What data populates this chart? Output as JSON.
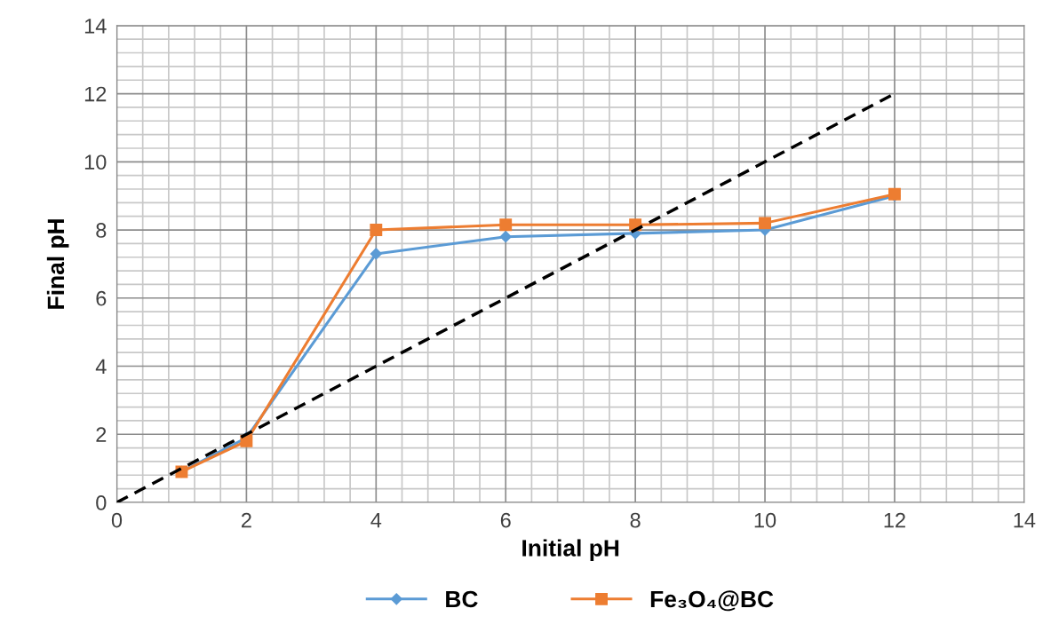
{
  "chart_data": {
    "type": "line",
    "xlabel": "Initial pH",
    "ylabel": "Final pH",
    "xlim": [
      0,
      14
    ],
    "xticks": [
      0,
      2,
      4,
      6,
      8,
      10,
      12,
      14
    ],
    "ylim": [
      0,
      14
    ],
    "yticks": [
      0,
      2,
      4,
      6,
      8,
      10,
      12,
      14
    ],
    "grid": true,
    "legend": "bottom",
    "line_style": "solid",
    "series": [
      {
        "name": "BC",
        "color": "#5b9bd5",
        "marker": "diamond",
        "x": [
          1,
          2,
          4,
          6,
          8,
          10,
          12
        ],
        "values": [
          0.9,
          1.9,
          7.3,
          7.8,
          7.9,
          8.0,
          9.0
        ]
      },
      {
        "name": "Fe₃O₄@BC",
        "color": "#ed7d31",
        "marker": "square",
        "x": [
          1,
          2,
          4,
          6,
          8,
          10,
          12
        ],
        "values": [
          0.9,
          1.8,
          8.0,
          8.15,
          8.15,
          8.2,
          9.05
        ]
      },
      {
        "color": "#000000",
        "marker": "none",
        "line_style": "dashed",
        "x": [
          0,
          12
        ],
        "values": [
          0,
          12
        ]
      }
    ]
  }
}
